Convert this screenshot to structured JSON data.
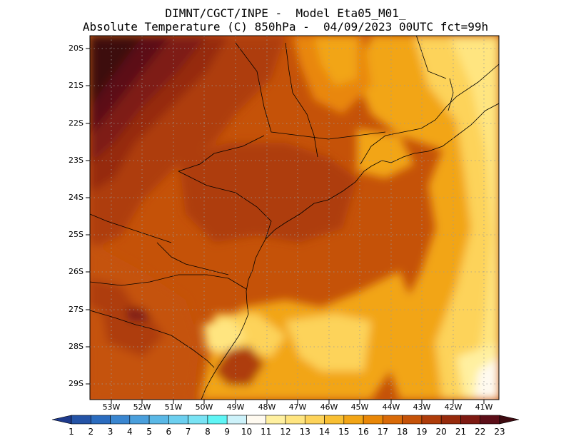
{
  "title": {
    "line1": "DIMNT/CGCT/INPE -  Model Eta05_M01_",
    "line2": "Absolute Temperature (C) 850hPa -  04/09/2023 00UTC fct=99h"
  },
  "lat_labels": [
    "20S",
    "21S",
    "22S",
    "23S",
    "24S",
    "25S",
    "26S",
    "27S",
    "28S",
    "29S"
  ],
  "lon_labels": [
    "53W",
    "52W",
    "51W",
    "50W",
    "49W",
    "48W",
    "47W",
    "46W",
    "45W",
    "44W",
    "43W",
    "42W",
    "41W"
  ],
  "colorbar": {
    "labels": [
      "1",
      "2",
      "3",
      "4",
      "5",
      "6",
      "7",
      "8",
      "9",
      "10",
      "11",
      "12",
      "13",
      "14",
      "15",
      "16",
      "17",
      "18",
      "19",
      "20",
      "21",
      "22",
      "23"
    ],
    "colors": [
      "#1e3a8c",
      "#2453a6",
      "#2b6cbf",
      "#3a86d0",
      "#4a9fdc",
      "#5ab8e6",
      "#6ccfef",
      "#79e3f4",
      "#5ff5f5",
      "#cdf2fa",
      "#fffaf0",
      "#fff0a0",
      "#ffe580",
      "#fdd35a",
      "#f8bf33",
      "#f2a516",
      "#e98707",
      "#d96a08",
      "#c55208",
      "#ae3c0a",
      "#962a0c",
      "#7e1a12",
      "#5c0e18",
      "#3e0a10"
    ]
  }
}
